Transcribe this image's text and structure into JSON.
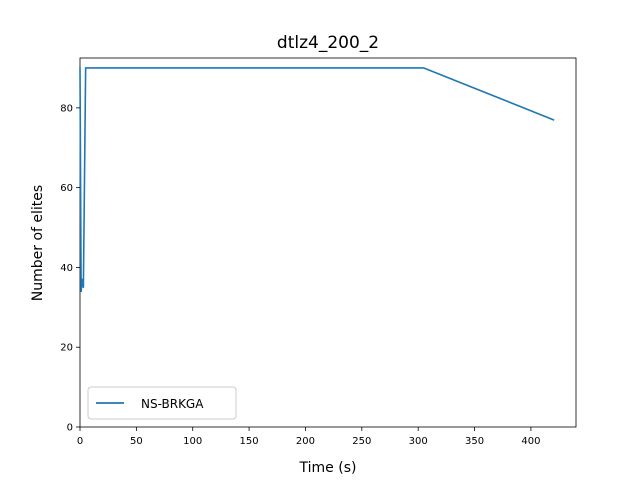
{
  "chart_data": {
    "type": "line",
    "title": "dtlz4_200_2",
    "xlabel": "Time (s)",
    "ylabel": "Number of elites",
    "xlim": [
      0,
      440
    ],
    "ylim": [
      0,
      92.5
    ],
    "xticks": [
      0,
      50,
      100,
      150,
      200,
      250,
      300,
      350,
      400
    ],
    "yticks": [
      0,
      20,
      40,
      60,
      80
    ],
    "grid": false,
    "legend_position": "lower-left",
    "series": [
      {
        "name": "NS-BRKGA",
        "color": "#1f77b4",
        "x": [
          0,
          1,
          2,
          3,
          5,
          305,
          420
        ],
        "y": [
          90,
          34,
          37,
          35,
          90,
          90,
          77
        ]
      }
    ]
  }
}
